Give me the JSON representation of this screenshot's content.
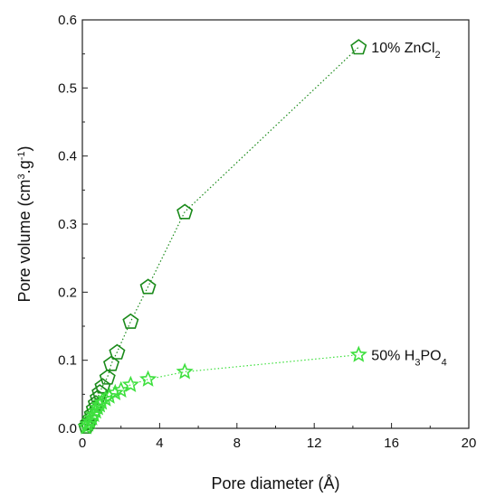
{
  "chart_data": {
    "type": "scatter",
    "title": "",
    "xlabel": "Pore diameter (Å)",
    "ylabel": {
      "parts": [
        {
          "text": "Pore volume (cm"
        },
        {
          "text": "3",
          "sup": true
        },
        {
          "text": ".g"
        },
        {
          "text": "-1",
          "sup": true
        },
        {
          "text": ")"
        }
      ]
    },
    "xlim": [
      0,
      20
    ],
    "ylim": [
      0,
      0.6
    ],
    "xticks": [
      "0",
      "4",
      "8",
      "12",
      "16",
      "20"
    ],
    "yticks": [
      "0.0",
      "0.1",
      "0.2",
      "0.3",
      "0.4",
      "0.5",
      "0.6"
    ],
    "grid": false,
    "series": [
      {
        "name": "10% ZnCl2",
        "label_parts": [
          {
            "text": "10% ZnCl"
          },
          {
            "text": "2",
            "sub": true
          }
        ],
        "marker": "pentagon",
        "color": "#1a8a1a",
        "x": [
          0.2,
          0.3,
          0.4,
          0.5,
          0.6,
          0.7,
          0.8,
          0.9,
          1.05,
          1.3,
          1.5,
          1.8,
          2.5,
          3.4,
          5.3,
          14.3
        ],
        "y": [
          0.003,
          0.008,
          0.014,
          0.021,
          0.029,
          0.037,
          0.045,
          0.053,
          0.062,
          0.075,
          0.095,
          0.112,
          0.157,
          0.208,
          0.318,
          0.56
        ]
      },
      {
        "name": "50% H3PO4",
        "label_parts": [
          {
            "text": "50% H"
          },
          {
            "text": "3",
            "sub": true
          },
          {
            "text": "PO"
          },
          {
            "text": "4",
            "sub": true
          }
        ],
        "marker": "star",
        "color": "#3ee03e",
        "x": [
          0.2,
          0.3,
          0.4,
          0.5,
          0.6,
          0.7,
          0.8,
          0.9,
          1.0,
          1.2,
          1.4,
          1.7,
          2.0,
          2.5,
          3.4,
          5.3,
          14.3
        ],
        "y": [
          0.002,
          0.006,
          0.01,
          0.015,
          0.02,
          0.025,
          0.03,
          0.034,
          0.038,
          0.043,
          0.047,
          0.052,
          0.056,
          0.064,
          0.072,
          0.083,
          0.108
        ]
      }
    ]
  }
}
